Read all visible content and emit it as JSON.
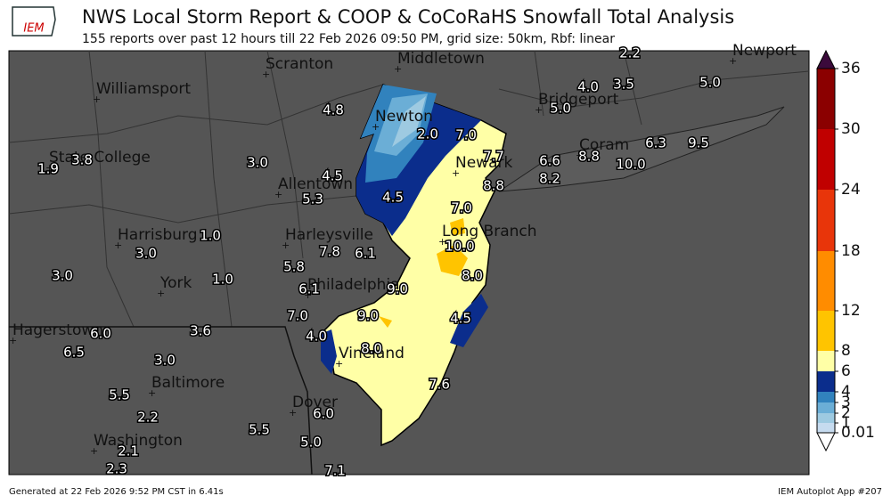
{
  "header": {
    "logo": "IEM",
    "title": "NWS Local Storm Report & COOP & CoCoRaHS Snowfall Total Analysis",
    "subtitle": "155 reports over past 12 hours till 22 Feb 2026 09:50 PM, grid size: 50km, Rbf: linear"
  },
  "cities": [
    "Scranton",
    "Middletown",
    "Williamsport",
    "Newton",
    "State College",
    "Newark",
    "Allentown",
    "Long Branch",
    "Harrisburg",
    "Harleysville",
    "York",
    "Philadelphia",
    "Hagerstown",
    "Baltimore",
    "Vineland",
    "Dover",
    "Washington",
    "Bridgeport",
    "Coram",
    "Newport"
  ],
  "reports": [
    "2.2",
    "4.0",
    "3.5",
    "5.0",
    "5.0",
    "4.8",
    "2.0",
    "7.0",
    "6.6",
    "8.8",
    "6.3",
    "9.5",
    "10.0",
    "7.7",
    "8.2",
    "1.9",
    "3.8",
    "3.0",
    "4.5",
    "8.8",
    "5.3",
    "4.5",
    "7.0",
    "1.0",
    "3.0",
    "10.0",
    "7.8",
    "6.1",
    "5.8",
    "8.0",
    "3.0",
    "1.0",
    "6.1",
    "9.0",
    "7.0",
    "9.0",
    "4.5",
    "6.0",
    "3.6",
    "4.0",
    "6.5",
    "8.0",
    "3.0",
    "7.6",
    "5.5",
    "6.0",
    "2.2",
    "5.5",
    "5.0",
    "2.1",
    "2.3",
    "7.1"
  ],
  "colorbar": {
    "levels": [
      0.01,
      1,
      2,
      3,
      4,
      6,
      8,
      12,
      18,
      24,
      30,
      36
    ],
    "colors": [
      "#c6dbef",
      "#9ecae1",
      "#6baed6",
      "#3182bd",
      "#0b2d8c",
      "#ffffa6",
      "#ffc400",
      "#ff8c00",
      "#e8350a",
      "#c00000",
      "#8b0000"
    ],
    "under": "#ffffff",
    "over": "#3b0a3b"
  },
  "footer": {
    "left": "Generated at 22 Feb 2026 9:52 PM CST in 6.41s",
    "right": "IEM Autoplot App #207"
  }
}
